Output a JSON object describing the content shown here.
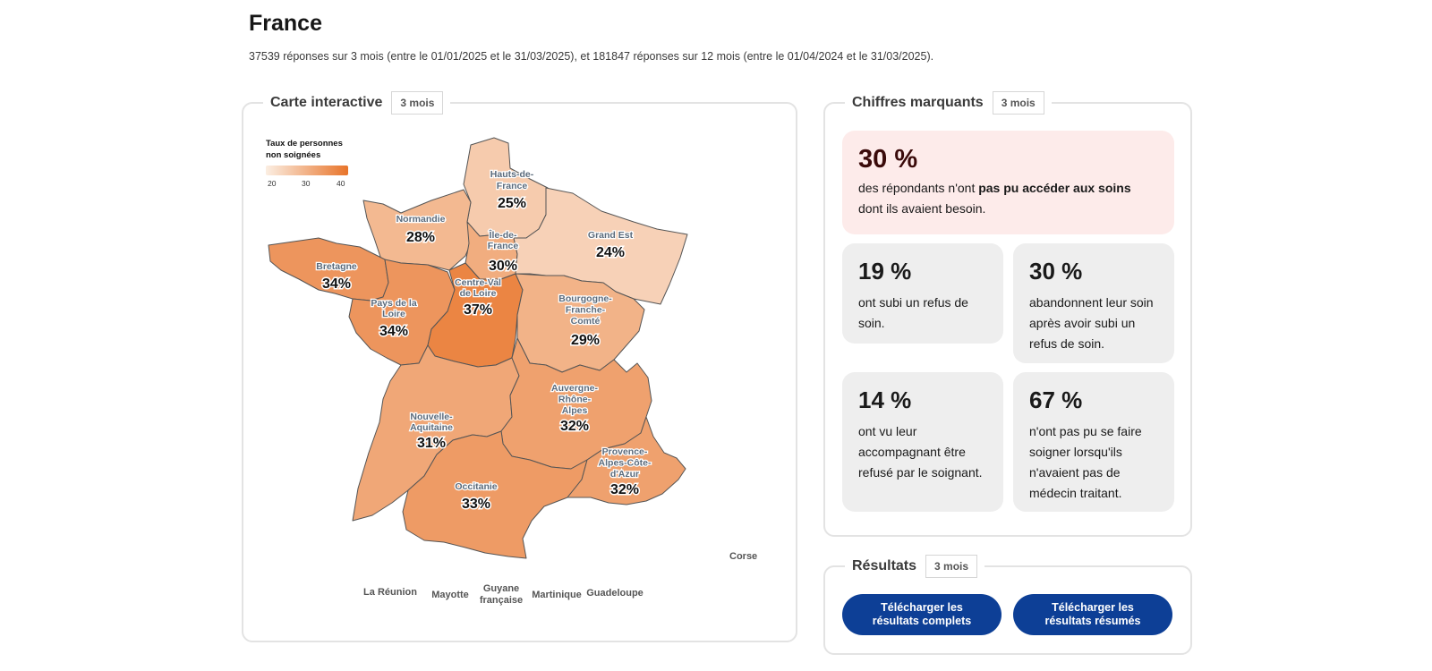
{
  "page": {
    "title": "France",
    "subtitle": "37539 réponses sur 3 mois (entre le 01/01/2025 et le 31/03/2025), et 181847 réponses sur 12 mois (entre le 01/04/2024 et le 31/03/2025)."
  },
  "map_card": {
    "title": "Carte interactive",
    "period": "3 mois",
    "legend": {
      "title_line1": "Taux de personnes",
      "title_line2": "non soignées",
      "ticks": [
        "20",
        "30",
        "40"
      ],
      "min": 20,
      "max": 40,
      "color_low": "#fbeee2",
      "color_high": "#e8742a"
    },
    "regions": [
      {
        "name_lines": [
          "Hauts-de-",
          "France"
        ],
        "value": "25%",
        "rate": 25
      },
      {
        "name_lines": [
          "Normandie"
        ],
        "value": "28%",
        "rate": 28
      },
      {
        "name_lines": [
          "Île-de-",
          "France"
        ],
        "value": "30%",
        "rate": 30
      },
      {
        "name_lines": [
          "Grand Est"
        ],
        "value": "24%",
        "rate": 24
      },
      {
        "name_lines": [
          "Bretagne"
        ],
        "value": "34%",
        "rate": 34
      },
      {
        "name_lines": [
          "Pays de la",
          "Loire"
        ],
        "value": "34%",
        "rate": 34
      },
      {
        "name_lines": [
          "Centre-Val",
          "de Loire"
        ],
        "value": "37%",
        "rate": 37
      },
      {
        "name_lines": [
          "Bourgogne-",
          "Franche-",
          "Comté"
        ],
        "value": "29%",
        "rate": 29
      },
      {
        "name_lines": [
          "Nouvelle-",
          "Aquitaine"
        ],
        "value": "31%",
        "rate": 31
      },
      {
        "name_lines": [
          "Auvergne-",
          "Rhône-",
          "Alpes"
        ],
        "value": "32%",
        "rate": 32
      },
      {
        "name_lines": [
          "Occitanie"
        ],
        "value": "33%",
        "rate": 33
      },
      {
        "name_lines": [
          "Provence-",
          "Alpes-Côte-",
          "d'Azur"
        ],
        "value": "32%",
        "rate": 32
      }
    ],
    "corse": "Corse",
    "overseas": [
      {
        "lines": [
          "La Réunion"
        ]
      },
      {
        "lines": [
          "Mayotte"
        ]
      },
      {
        "lines": [
          "Guyane",
          "française"
        ]
      },
      {
        "lines": [
          "Martinique"
        ]
      },
      {
        "lines": [
          "Guadeloupe"
        ]
      }
    ]
  },
  "key_card": {
    "title": "Chiffres marquants",
    "period": "3 mois",
    "main": {
      "value": "30 %",
      "text_before": "des répondants n'ont ",
      "text_bold": "pas pu accéder aux soins",
      "text_after": " dont ils avaient besoin."
    },
    "stats": [
      {
        "value": "19 %",
        "text": "ont subi un refus de soin."
      },
      {
        "value": "30 %",
        "text": "abandonnent leur soin après avoir subi un refus de soin."
      },
      {
        "value": "14 %",
        "text": "ont vu leur accompagnant être refusé par le soignant."
      },
      {
        "value": "67 %",
        "text": "n'ont pas pu se faire soigner lorsqu'ils n'avaient pas de médecin traitant."
      }
    ]
  },
  "results_card": {
    "title": "Résultats",
    "period": "3 mois",
    "btn_full_line1": "Télécharger les",
    "btn_full_line2": "résultats complets",
    "btn_summary_line1": "Télécharger les",
    "btn_summary_line2": "résultats résumés"
  }
}
